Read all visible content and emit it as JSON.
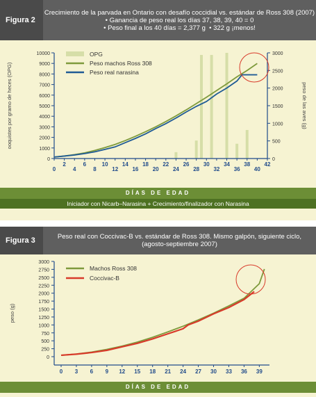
{
  "fig2": {
    "label": "Figura 2",
    "title": "Crecimiento de la parvada en Ontario con desafío coccidial vs. estándar de Ross 308 (2007)",
    "bullet1": "Ganancia de peso real los días 37, 38, 39, 40 = 0",
    "bullet2a": "Peso final a los 40 días = 2,377 g",
    "bullet2b": "322 g ¡menos!",
    "xlabel": "DÍAS DE EDAD",
    "footer": "Iniciador con Nicarb–Narasina + Crecimiento/finalizador con Narasina"
  },
  "fig3": {
    "label": "Figura 3",
    "title_line1": "Peso real con Coccivac-B vs. estándar de Ross 308. Mismo galpón, siguiente ciclo,",
    "title_line2": "(agosto-septiembre 2007)",
    "xlabel": "DÍAS DE EDAD"
  },
  "colors": {
    "panel": "#f6f3d2",
    "header": "#5f5f5f",
    "green_bar": "#6c8e36",
    "opg": "#d6dea8",
    "ross": "#7e9a3c",
    "real": "#1f5b95",
    "coccivac": "#d83a2a",
    "circle": "#d83a2a",
    "axis": "#1f4a8a"
  },
  "chart_data": [
    {
      "type": "bar",
      "ylabel": "ooquistes por gramo de heces (OPG)",
      "y2label": "peso de las aves (g)",
      "xticks": [
        0,
        2,
        4,
        6,
        8,
        10,
        12,
        14,
        16,
        18,
        20,
        22,
        24,
        26,
        28,
        30,
        32,
        34,
        36,
        38,
        40,
        42
      ],
      "yticks": [
        0,
        1000,
        2000,
        3000,
        4000,
        5000,
        6000,
        7000,
        8000,
        9000,
        10000
      ],
      "y2ticks": [
        0,
        500,
        1000,
        1500,
        2000,
        2500,
        3000
      ],
      "xlim": [
        0,
        42
      ],
      "ylim": [
        0,
        10000
      ],
      "y2lim": [
        0,
        3000
      ],
      "legend": [
        "OPG",
        "Peso machos Ross 308",
        "Peso real narasina"
      ],
      "legend_position": "top-left",
      "opg": [
        {
          "x": 24,
          "y": 600
        },
        {
          "x": 28,
          "y": 1700
        },
        {
          "x": 29,
          "y": 9800
        },
        {
          "x": 31,
          "y": 9800
        },
        {
          "x": 34,
          "y": 10000
        },
        {
          "x": 36,
          "y": 1400
        },
        {
          "x": 38,
          "y": 2700
        }
      ],
      "series": [
        {
          "name": "Peso machos Ross 308",
          "x": [
            0,
            2,
            4,
            6,
            8,
            10,
            12,
            14,
            16,
            18,
            20,
            22,
            24,
            26,
            28,
            30,
            32,
            34,
            36,
            38,
            40
          ],
          "y": [
            42,
            70,
            110,
            160,
            230,
            310,
            400,
            510,
            630,
            760,
            900,
            1050,
            1210,
            1380,
            1560,
            1740,
            1930,
            2120,
            2320,
            2500,
            2700
          ]
        },
        {
          "name": "Peso real narasina",
          "x": [
            0,
            2,
            4,
            6,
            8,
            10,
            12,
            14,
            16,
            18,
            20,
            22,
            24,
            26,
            28,
            30,
            32,
            34,
            36,
            37,
            38,
            39,
            40
          ],
          "y": [
            42,
            70,
            100,
            140,
            190,
            260,
            330,
            450,
            570,
            700,
            850,
            990,
            1150,
            1320,
            1480,
            1620,
            1830,
            2000,
            2200,
            2377,
            2377,
            2377,
            2377
          ]
        }
      ]
    },
    {
      "type": "line",
      "ylabel": "peso (g)",
      "xticks": [
        0,
        3,
        6,
        9,
        12,
        15,
        18,
        21,
        24,
        27,
        30,
        33,
        36,
        39
      ],
      "yticks": [
        0,
        250,
        500,
        750,
        1000,
        1250,
        1500,
        1750,
        2000,
        2250,
        2500,
        2750,
        3000
      ],
      "xlim": [
        0,
        41
      ],
      "ylim": [
        0,
        3000
      ],
      "legend": [
        "Machos Ross 308",
        "Coccivac-B"
      ],
      "legend_position": "top-left",
      "series": [
        {
          "name": "Machos Ross 308",
          "x": [
            0,
            3,
            6,
            9,
            12,
            15,
            18,
            21,
            24,
            27,
            30,
            33,
            36,
            39,
            40
          ],
          "y": [
            42,
            85,
            145,
            230,
            335,
            460,
            610,
            780,
            960,
            1160,
            1370,
            1600,
            1840,
            2300,
            2760
          ]
        },
        {
          "name": "Coccivac-B",
          "x": [
            0,
            3,
            6,
            9,
            12,
            15,
            18,
            21,
            24,
            25,
            27,
            30,
            33,
            36,
            38
          ],
          "y": [
            45,
            80,
            130,
            200,
            310,
            420,
            560,
            720,
            880,
            1000,
            1120,
            1350,
            1550,
            1800,
            2050
          ]
        }
      ]
    }
  ]
}
